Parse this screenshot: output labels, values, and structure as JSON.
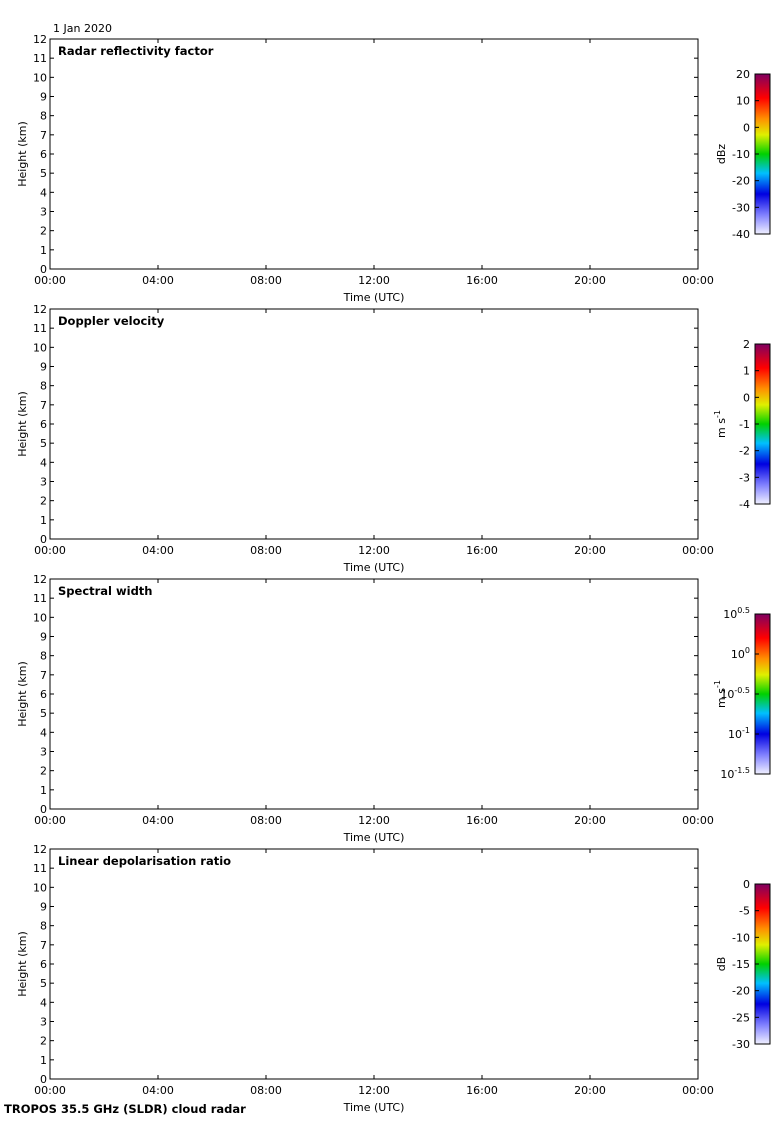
{
  "header": {
    "date": "1 Jan 2020"
  },
  "footer": "TROPOS 35.5 GHz (SLDR) cloud radar",
  "chart_data": [
    {
      "type": "heatmap",
      "title": "Radar reflectivity factor",
      "xlabel": "Time (UTC)",
      "ylabel": "Height (km)",
      "xlim": [
        0,
        24
      ],
      "xticks": [
        {
          "value": 0,
          "label": "00:00"
        },
        {
          "value": 4,
          "label": "04:00"
        },
        {
          "value": 8,
          "label": "08:00"
        },
        {
          "value": 12,
          "label": "12:00"
        },
        {
          "value": 16,
          "label": "16:00"
        },
        {
          "value": 20,
          "label": "20:00"
        },
        {
          "value": 24,
          "label": "00:00"
        }
      ],
      "ylim": [
        0,
        12
      ],
      "yticks": [
        0,
        1,
        2,
        3,
        4,
        5,
        6,
        7,
        8,
        9,
        10,
        11,
        12
      ],
      "colorbar": {
        "label": "dBz",
        "lim": [
          -40,
          20
        ],
        "ticks": [
          -40,
          -30,
          -20,
          -10,
          0,
          10,
          20
        ]
      }
    },
    {
      "type": "heatmap",
      "title": "Doppler velocity",
      "xlabel": "Time (UTC)",
      "ylabel": "Height (km)",
      "xlim": [
        0,
        24
      ],
      "xticks": [
        {
          "value": 0,
          "label": "00:00"
        },
        {
          "value": 4,
          "label": "04:00"
        },
        {
          "value": 8,
          "label": "08:00"
        },
        {
          "value": 12,
          "label": "12:00"
        },
        {
          "value": 16,
          "label": "16:00"
        },
        {
          "value": 20,
          "label": "20:00"
        },
        {
          "value": 24,
          "label": "00:00"
        }
      ],
      "ylim": [
        0,
        12
      ],
      "yticks": [
        0,
        1,
        2,
        3,
        4,
        5,
        6,
        7,
        8,
        9,
        10,
        11,
        12
      ],
      "colorbar": {
        "label": "m s",
        "label_sup": "-1",
        "lim": [
          -4,
          2
        ],
        "ticks": [
          -4,
          -3,
          -2,
          -1,
          0,
          1,
          2
        ]
      }
    },
    {
      "type": "heatmap",
      "title": "Spectral width",
      "xlabel": "Time (UTC)",
      "ylabel": "Height (km)",
      "xlim": [
        0,
        24
      ],
      "xticks": [
        {
          "value": 0,
          "label": "00:00"
        },
        {
          "value": 4,
          "label": "04:00"
        },
        {
          "value": 8,
          "label": "08:00"
        },
        {
          "value": 12,
          "label": "12:00"
        },
        {
          "value": 16,
          "label": "16:00"
        },
        {
          "value": 20,
          "label": "20:00"
        },
        {
          "value": 24,
          "label": "00:00"
        }
      ],
      "ylim": [
        0,
        12
      ],
      "yticks": [
        0,
        1,
        2,
        3,
        4,
        5,
        6,
        7,
        8,
        9,
        10,
        11,
        12
      ],
      "colorbar": {
        "label": "m s",
        "label_sup": "-1",
        "log": true,
        "lim": [
          -1.5,
          0.5
        ],
        "ticks": [
          {
            "value": -1.5,
            "label": "10",
            "sup": "-1.5"
          },
          {
            "value": -1,
            "label": "10",
            "sup": "-1"
          },
          {
            "value": -0.5,
            "label": "10",
            "sup": "-0.5"
          },
          {
            "value": 0,
            "label": "10",
            "sup": "0"
          },
          {
            "value": 0.5,
            "label": "10",
            "sup": "0.5"
          }
        ]
      }
    },
    {
      "type": "heatmap",
      "title": "Linear depolarisation ratio",
      "xlabel": "Time (UTC)",
      "ylabel": "Height (km)",
      "xlim": [
        0,
        24
      ],
      "xticks": [
        {
          "value": 0,
          "label": "00:00"
        },
        {
          "value": 4,
          "label": "04:00"
        },
        {
          "value": 8,
          "label": "08:00"
        },
        {
          "value": 12,
          "label": "12:00"
        },
        {
          "value": 16,
          "label": "16:00"
        },
        {
          "value": 20,
          "label": "20:00"
        },
        {
          "value": 24,
          "label": "00:00"
        }
      ],
      "ylim": [
        0,
        12
      ],
      "yticks": [
        0,
        1,
        2,
        3,
        4,
        5,
        6,
        7,
        8,
        9,
        10,
        11,
        12
      ],
      "colorbar": {
        "label": "dB",
        "lim": [
          -30,
          0
        ],
        "ticks": [
          -30,
          -25,
          -20,
          -15,
          -10,
          -5,
          0
        ]
      }
    }
  ]
}
